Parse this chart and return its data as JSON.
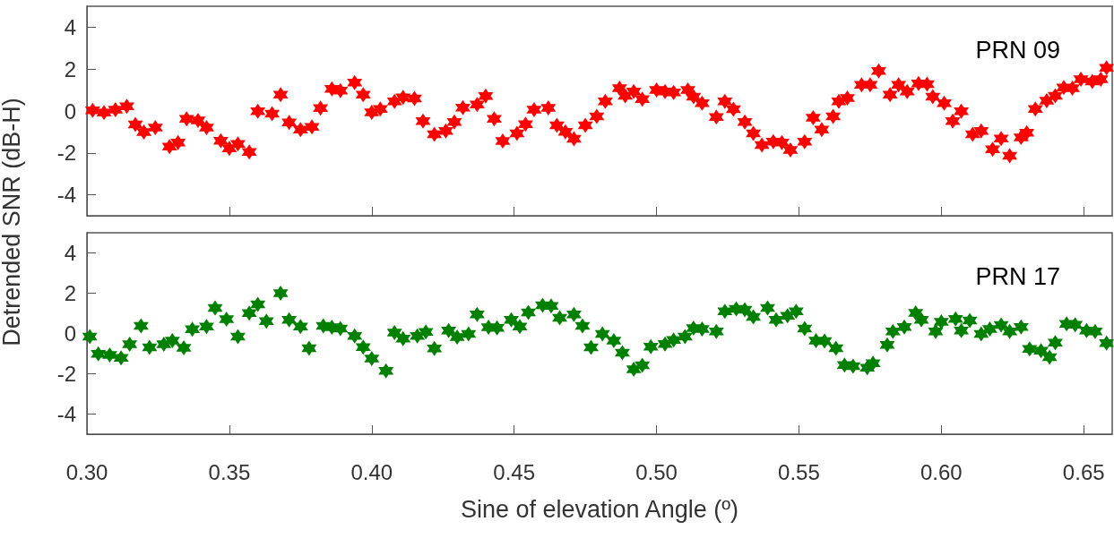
{
  "chart_data": [
    {
      "type": "scatter",
      "ylabel": "Detrended SNR (dB-H)",
      "annotations": [
        "PRN 09"
      ],
      "marker": "star",
      "grid": false,
      "tick_labels": "y",
      "xlim": [
        0.3,
        0.66
      ],
      "xticks": [
        {
          "value": 0.3,
          "label": null
        },
        {
          "value": 0.35,
          "label": null
        },
        {
          "value": 0.4,
          "label": null
        },
        {
          "value": 0.45,
          "label": null
        },
        {
          "value": 0.5,
          "label": null
        },
        {
          "value": 0.55,
          "label": null
        },
        {
          "value": 0.6,
          "label": null
        },
        {
          "value": 0.65,
          "label": null
        }
      ],
      "ylim": [
        -5,
        5
      ],
      "yticks": [
        -4,
        -2,
        0,
        2,
        4
      ],
      "series": [
        {
          "color": "#ff0000",
          "x": [
            0.302,
            0.306,
            0.31,
            0.314,
            0.317,
            0.32,
            0.324,
            0.329,
            0.332,
            0.335,
            0.339,
            0.342,
            0.347,
            0.35,
            0.353,
            0.357,
            0.36,
            0.365,
            0.368,
            0.371,
            0.375,
            0.379,
            0.382,
            0.386,
            0.389,
            0.394,
            0.397,
            0.4,
            0.403,
            0.408,
            0.411,
            0.415,
            0.418,
            0.422,
            0.426,
            0.429,
            0.432,
            0.437,
            0.44,
            0.443,
            0.446,
            0.451,
            0.454,
            0.457,
            0.462,
            0.465,
            0.468,
            0.471,
            0.475,
            0.479,
            0.482,
            0.487,
            0.489,
            0.492,
            0.495,
            0.5,
            0.503,
            0.506,
            0.511,
            0.513,
            0.516,
            0.521,
            0.524,
            0.527,
            0.531,
            0.534,
            0.537,
            0.541,
            0.544,
            0.547,
            0.552,
            0.555,
            0.558,
            0.562,
            0.564,
            0.567,
            0.572,
            0.575,
            0.578,
            0.582,
            0.585,
            0.588,
            0.592,
            0.595,
            0.597,
            0.601,
            0.604,
            0.607,
            0.611,
            0.614,
            0.618,
            0.621,
            0.624,
            0.628,
            0.63,
            0.633,
            0.637,
            0.64,
            0.643,
            0.646,
            0.649,
            0.653,
            0.656,
            0.658
          ],
          "values": [
            0.03,
            -0.07,
            0.06,
            0.22,
            -0.64,
            -1.0,
            -0.79,
            -1.7,
            -1.51,
            -0.37,
            -0.45,
            -0.79,
            -1.42,
            -1.78,
            -1.57,
            -1.95,
            -0.01,
            -0.13,
            0.78,
            -0.54,
            -0.89,
            -0.76,
            0.14,
            1.06,
            0.97,
            1.36,
            0.78,
            -0.06,
            0.1,
            0.46,
            0.65,
            0.6,
            -0.48,
            -1.11,
            -0.95,
            -0.52,
            0.16,
            0.31,
            0.72,
            -0.37,
            -1.43,
            -1.07,
            -0.63,
            0.06,
            0.15,
            -0.68,
            -0.99,
            -1.32,
            -0.68,
            -0.26,
            0.46,
            1.09,
            0.73,
            0.93,
            0.57,
            1.0,
            0.93,
            0.89,
            1.0,
            0.68,
            0.37,
            -0.29,
            0.46,
            0.09,
            -0.52,
            -1.07,
            -1.62,
            -1.46,
            -1.51,
            -1.86,
            -1.46,
            -0.32,
            -0.89,
            -0.26,
            0.46,
            0.62,
            1.25,
            1.25,
            1.91,
            0.78,
            1.25,
            0.93,
            1.31,
            1.28,
            0.68,
            0.37,
            -0.48,
            -0.01,
            -1.11,
            -0.95,
            -1.83,
            -1.31,
            -2.14,
            -1.26,
            -1.04,
            0.1,
            0.49,
            0.73,
            1.12,
            1.09,
            1.52,
            1.41,
            1.52,
            2.06
          ]
        }
      ]
    },
    {
      "type": "scatter",
      "xlabel": "Sine of elevation Angle (º)",
      "annotations": [
        "PRN 17"
      ],
      "marker": "star",
      "grid": false,
      "xlim": [
        0.3,
        0.66
      ],
      "xticks": [
        {
          "value": 0.3,
          "label": "0.30"
        },
        0.35,
        {
          "value": 0.4,
          "label": "0.40"
        },
        0.45,
        {
          "value": 0.5,
          "label": "0.50"
        },
        0.55,
        {
          "value": 0.6,
          "label": "0.60"
        },
        0.65
      ],
      "ylim": [
        -5,
        5
      ],
      "yticks": [
        -4,
        -2,
        0,
        2,
        4
      ],
      "series": [
        {
          "color": "#008000",
          "x": [
            0.301,
            0.304,
            0.308,
            0.312,
            0.315,
            0.319,
            0.322,
            0.327,
            0.33,
            0.334,
            0.337,
            0.342,
            0.345,
            0.349,
            0.353,
            0.357,
            0.36,
            0.363,
            0.368,
            0.371,
            0.375,
            0.378,
            0.383,
            0.386,
            0.389,
            0.394,
            0.397,
            0.4,
            0.405,
            0.408,
            0.411,
            0.416,
            0.419,
            0.422,
            0.427,
            0.43,
            0.434,
            0.437,
            0.441,
            0.444,
            0.449,
            0.452,
            0.455,
            0.46,
            0.463,
            0.466,
            0.471,
            0.474,
            0.477,
            0.481,
            0.485,
            0.488,
            0.492,
            0.495,
            0.498,
            0.503,
            0.506,
            0.51,
            0.513,
            0.516,
            0.521,
            0.524,
            0.528,
            0.531,
            0.534,
            0.539,
            0.542,
            0.546,
            0.549,
            0.552,
            0.556,
            0.559,
            0.563,
            0.566,
            0.569,
            0.574,
            0.576,
            0.581,
            0.583,
            0.587,
            0.591,
            0.593,
            0.598,
            0.6,
            0.605,
            0.607,
            0.61,
            0.614,
            0.617,
            0.621,
            0.624,
            0.628,
            0.631,
            0.635,
            0.638,
            0.64,
            0.644,
            0.647,
            0.651,
            0.654,
            0.658
          ],
          "values": [
            -0.15,
            -1.01,
            -1.07,
            -1.21,
            -0.53,
            0.38,
            -0.69,
            -0.53,
            -0.36,
            -0.71,
            0.21,
            0.35,
            1.27,
            0.71,
            -0.15,
            1.01,
            1.44,
            0.61,
            2.0,
            0.68,
            0.35,
            -0.73,
            0.38,
            0.31,
            0.25,
            -0.12,
            -0.68,
            -1.24,
            -1.85,
            0.05,
            -0.25,
            -0.12,
            0.08,
            -0.74,
            0.15,
            -0.18,
            -0.02,
            0.94,
            0.31,
            0.28,
            0.68,
            0.35,
            1.04,
            1.4,
            1.37,
            0.78,
            0.94,
            0.38,
            -0.69,
            -0.02,
            -0.35,
            -0.95,
            -1.78,
            -1.58,
            -0.65,
            -0.52,
            -0.32,
            -0.15,
            0.27,
            0.22,
            0.1,
            1.1,
            1.22,
            1.18,
            0.82,
            1.27,
            0.68,
            0.88,
            1.1,
            0.25,
            -0.35,
            -0.38,
            -0.73,
            -1.57,
            -1.62,
            -1.7,
            -1.48,
            -0.57,
            0.1,
            0.32,
            1.02,
            0.68,
            0.1,
            0.58,
            0.72,
            0.15,
            0.65,
            -0.02,
            0.22,
            0.42,
            0.1,
            0.32,
            -0.77,
            -0.85,
            -1.18,
            -0.45,
            0.48,
            0.43,
            0.15,
            0.1,
            -0.48
          ]
        }
      ]
    }
  ]
}
